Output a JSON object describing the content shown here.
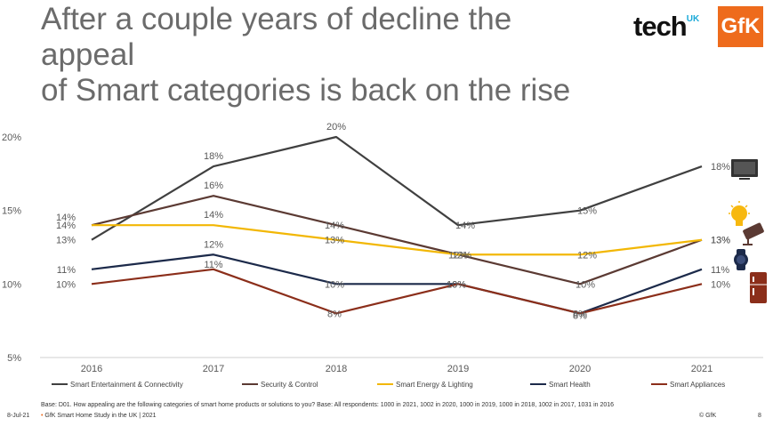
{
  "title_lines": [
    "After a couple years of decline the appeal",
    "of Smart categories is back on the rise"
  ],
  "logos": {
    "tech": "tech",
    "uk": "UK",
    "gfk": "GfK"
  },
  "chart_data": {
    "type": "line",
    "x": [
      "2016",
      "2017",
      "2018",
      "2019",
      "2020",
      "2021"
    ],
    "ylim": [
      5,
      20
    ],
    "yticks": [
      "5%",
      "10%",
      "15%",
      "20%"
    ],
    "grid": false,
    "legend_position": "bottom",
    "series": [
      {
        "name": "Smart Entertainment & Connectivity",
        "color": "#404040",
        "icon": "tv-icon",
        "values": [
          13,
          18,
          20,
          14,
          15,
          18
        ],
        "labels": [
          "13%",
          "18%",
          "20%",
          "14%",
          "15%",
          "18%"
        ]
      },
      {
        "name": "Security & Control",
        "color": "#5b3a33",
        "icon": "camera-icon",
        "values": [
          14,
          16,
          14,
          12,
          10,
          13
        ],
        "labels": [
          "14%",
          "16%",
          "14%",
          "12%",
          "10%",
          "13%"
        ]
      },
      {
        "name": "Smart Energy & Lighting",
        "color": "#f2b705",
        "icon": "bulb-icon",
        "values": [
          14,
          14,
          13,
          12,
          12,
          13
        ],
        "labels": [
          "14%",
          "14%",
          "13%",
          "12%",
          "12%",
          "13%"
        ]
      },
      {
        "name": "Smart Health",
        "color": "#1c2a4a",
        "icon": "watch-icon",
        "values": [
          11,
          12,
          10,
          10,
          8,
          11
        ],
        "labels": [
          "11%",
          "12%",
          "10%",
          "10%",
          "8%",
          "11%"
        ]
      },
      {
        "name": "Smart Appliances",
        "color": "#8b2e1a",
        "icon": "fridge-icon",
        "values": [
          10,
          11,
          8,
          10,
          8,
          10
        ],
        "labels": [
          "10%",
          "11%",
          "8%",
          "10%",
          "8%",
          "10%"
        ]
      }
    ]
  },
  "base_note": "Base: D01. How appealing are the following categories of smart home products or solutions to you? Base: All respondents: 1000 in 2021, 1002 in 2020, 1000 in 2019, 1000 in 2018, 1002 in 2017, 1031 in 2016",
  "footer": {
    "date": "8-Jul-21",
    "study": "GfK Smart Home Study in the UK | 2021",
    "copyright": "© GfK",
    "page": "8"
  }
}
